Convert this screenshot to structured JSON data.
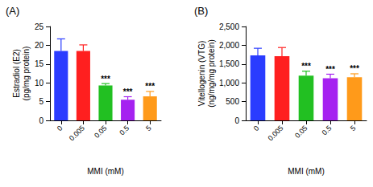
{
  "chart_data": [
    {
      "type": "bar",
      "title": "(A)",
      "xlabel": "MMI (mM)",
      "ylabel": "Estradiol (E2)\n(pg/mg protein)",
      "categories": [
        "0",
        "0.005",
        "0.05",
        "0.5",
        "5"
      ],
      "values": [
        18.5,
        18.5,
        9.3,
        5.5,
        6.4
      ],
      "errors": [
        3.2,
        1.6,
        0.5,
        0.8,
        1.3
      ],
      "significance": [
        null,
        null,
        "***",
        "***",
        "***"
      ],
      "colors": [
        "#2a3cff",
        "#ff1f1f",
        "#22c022",
        "#a522f0",
        "#ff9a1a"
      ],
      "ylim": [
        0,
        25
      ],
      "yticks": [
        0,
        5,
        10,
        15,
        20,
        25
      ],
      "grid": false
    },
    {
      "type": "bar",
      "title": "(B)",
      "xlabel": "MMI (mM)",
      "ylabel": "Vitellogenin (VTG)\n(ng/mg/mg protein)",
      "categories": [
        "0",
        "0.005",
        "0.05",
        "0.5",
        "5"
      ],
      "values": [
        1730,
        1710,
        1190,
        1120,
        1150
      ],
      "errors": [
        190,
        230,
        120,
        110,
        90
      ],
      "significance": [
        null,
        null,
        "***",
        "***",
        "***"
      ],
      "colors": [
        "#2a3cff",
        "#ff1f1f",
        "#22c022",
        "#a522f0",
        "#ff9a1a"
      ],
      "ylim": [
        0,
        2500
      ],
      "yticks": [
        0,
        500,
        1000,
        1500,
        2000,
        2500
      ],
      "grid": false
    }
  ]
}
